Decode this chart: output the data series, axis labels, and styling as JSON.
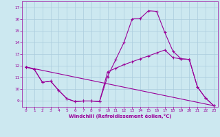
{
  "xlabel": "Windchill (Refroidissement éolien,°C)",
  "xlim": [
    -0.5,
    23.5
  ],
  "ylim": [
    8.5,
    17.5
  ],
  "yticks": [
    9,
    10,
    11,
    12,
    13,
    14,
    15,
    16,
    17
  ],
  "xticks": [
    0,
    1,
    2,
    3,
    4,
    5,
    6,
    7,
    8,
    9,
    10,
    11,
    12,
    13,
    14,
    15,
    16,
    17,
    18,
    19,
    20,
    21,
    22,
    23
  ],
  "background_color": "#cce8f0",
  "grid_color": "#aaccdd",
  "line_color": "#990099",
  "line1_x": [
    0,
    1,
    2,
    3,
    4,
    5,
    6,
    7,
    8,
    9,
    10,
    11,
    12,
    13,
    14,
    15,
    16,
    17,
    18,
    19,
    20,
    21,
    22,
    23
  ],
  "line1_y": [
    11.9,
    11.7,
    10.6,
    10.7,
    9.9,
    9.2,
    8.95,
    9.0,
    9.0,
    8.95,
    11.1,
    12.55,
    14.0,
    16.0,
    16.05,
    16.7,
    16.65,
    14.85,
    13.25,
    12.6,
    12.55,
    10.2,
    9.25,
    8.6
  ],
  "line2_x": [
    0,
    1,
    2,
    3,
    4,
    5,
    6,
    7,
    8,
    9,
    10,
    11,
    12,
    13,
    14,
    15,
    16,
    17,
    18,
    19,
    20,
    21,
    22,
    23
  ],
  "line2_y": [
    11.9,
    11.7,
    10.6,
    10.7,
    9.9,
    9.2,
    8.95,
    9.0,
    9.0,
    8.95,
    11.5,
    11.8,
    12.1,
    12.35,
    12.6,
    12.85,
    13.1,
    13.35,
    12.7,
    12.6,
    12.55,
    10.2,
    9.25,
    8.6
  ],
  "line3_x": [
    0,
    23
  ],
  "line3_y": [
    11.9,
    8.6
  ]
}
